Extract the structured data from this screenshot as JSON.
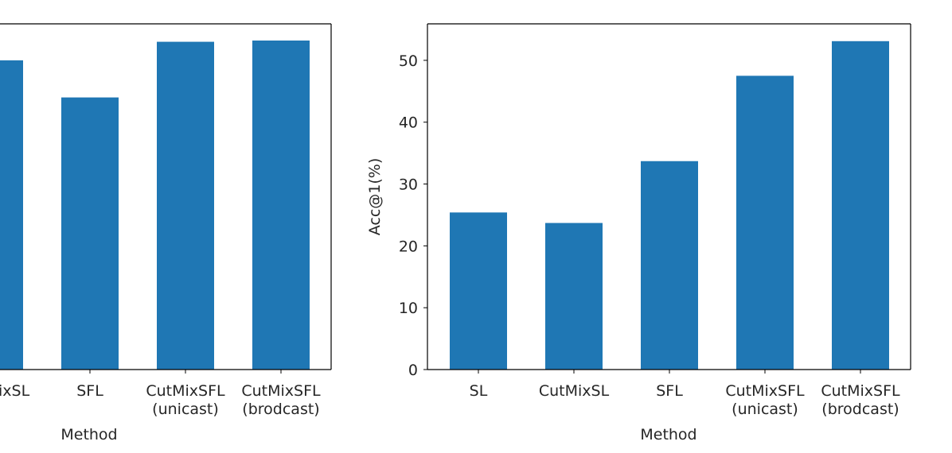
{
  "chart_data": [
    {
      "type": "bar",
      "title": "",
      "xlabel": "Method",
      "ylabel": "",
      "ylim": [
        0,
        55.9
      ],
      "yticks": [],
      "categories": [
        [
          "CutMixSL"
        ],
        [
          "SFL"
        ],
        [
          "CutMixSFL",
          "(unicast)"
        ],
        [
          "CutMixSFL",
          "(brodcast)"
        ]
      ],
      "values": [
        50.0,
        44.0,
        53.0,
        53.2
      ],
      "bar_color": "#1f77b4",
      "partially_visible": true
    },
    {
      "type": "bar",
      "title": "",
      "xlabel": "Method",
      "ylabel": "Acc@1(%)",
      "ylim": [
        0,
        55.9
      ],
      "yticks": [
        "0",
        "10",
        "20",
        "30",
        "40",
        "50"
      ],
      "categories": [
        [
          "SL"
        ],
        [
          "CutMixSL"
        ],
        [
          "SFL"
        ],
        [
          "CutMixSFL",
          "(unicast)"
        ],
        [
          "CutMixSFL",
          "(brodcast)"
        ]
      ],
      "values": [
        25.4,
        23.7,
        33.7,
        47.5,
        53.1
      ],
      "bar_color": "#1f77b4"
    }
  ]
}
